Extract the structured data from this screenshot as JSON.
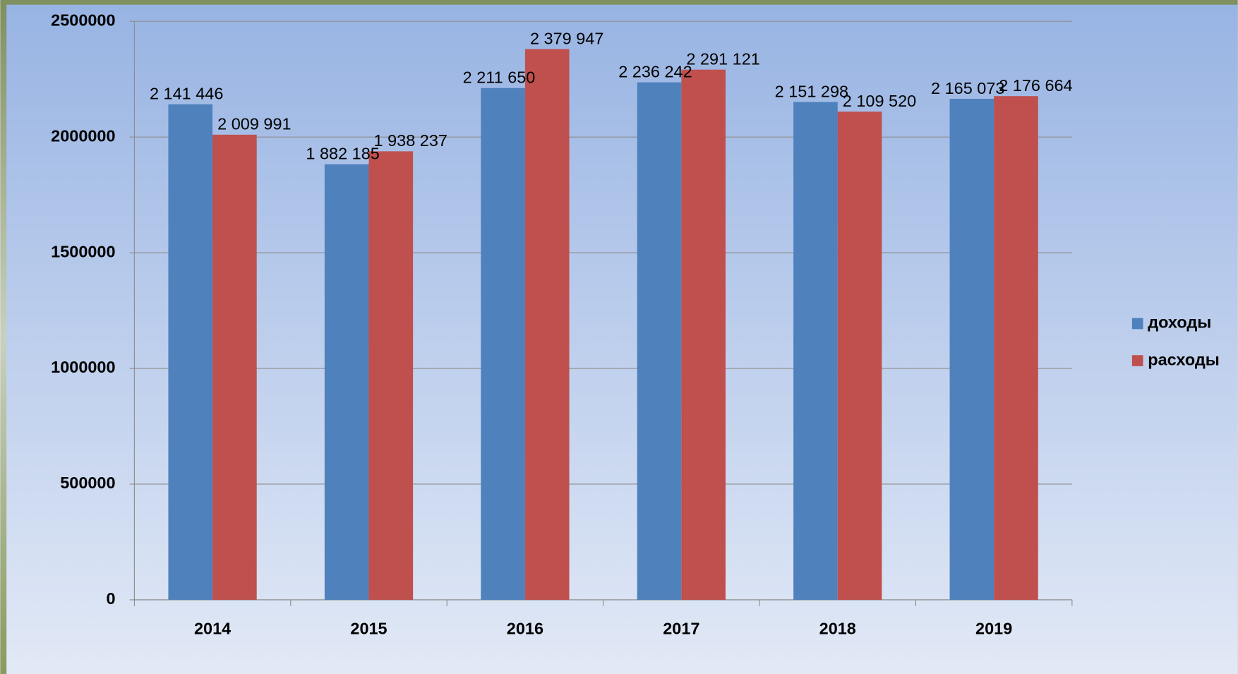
{
  "chart_data": {
    "type": "bar",
    "categories": [
      "2014",
      "2015",
      "2016",
      "2017",
      "2018",
      "2019"
    ],
    "series": [
      {
        "name": "доходы",
        "color": "#4f81bd",
        "values": [
          2141446,
          1882185,
          2211650,
          2236242,
          2151298,
          2165073
        ],
        "value_labels": [
          "2 141 446",
          "1 882 185",
          "2 211 650",
          "2 236 242",
          "2 151 298",
          "2 165 073"
        ]
      },
      {
        "name": "расходы",
        "color": "#c0504d",
        "values": [
          2009991,
          1938237,
          2379947,
          2291121,
          2109520,
          2176664
        ],
        "value_labels": [
          "2 009 991",
          "1 938 237",
          "2 379 947",
          "2 291 121",
          "2 109 520",
          "2 176 664"
        ]
      }
    ],
    "ylim": [
      0,
      2500000
    ],
    "yticks": [
      0,
      500000,
      1000000,
      1500000,
      2000000,
      2500000
    ],
    "grid": true,
    "legend": "right"
  }
}
